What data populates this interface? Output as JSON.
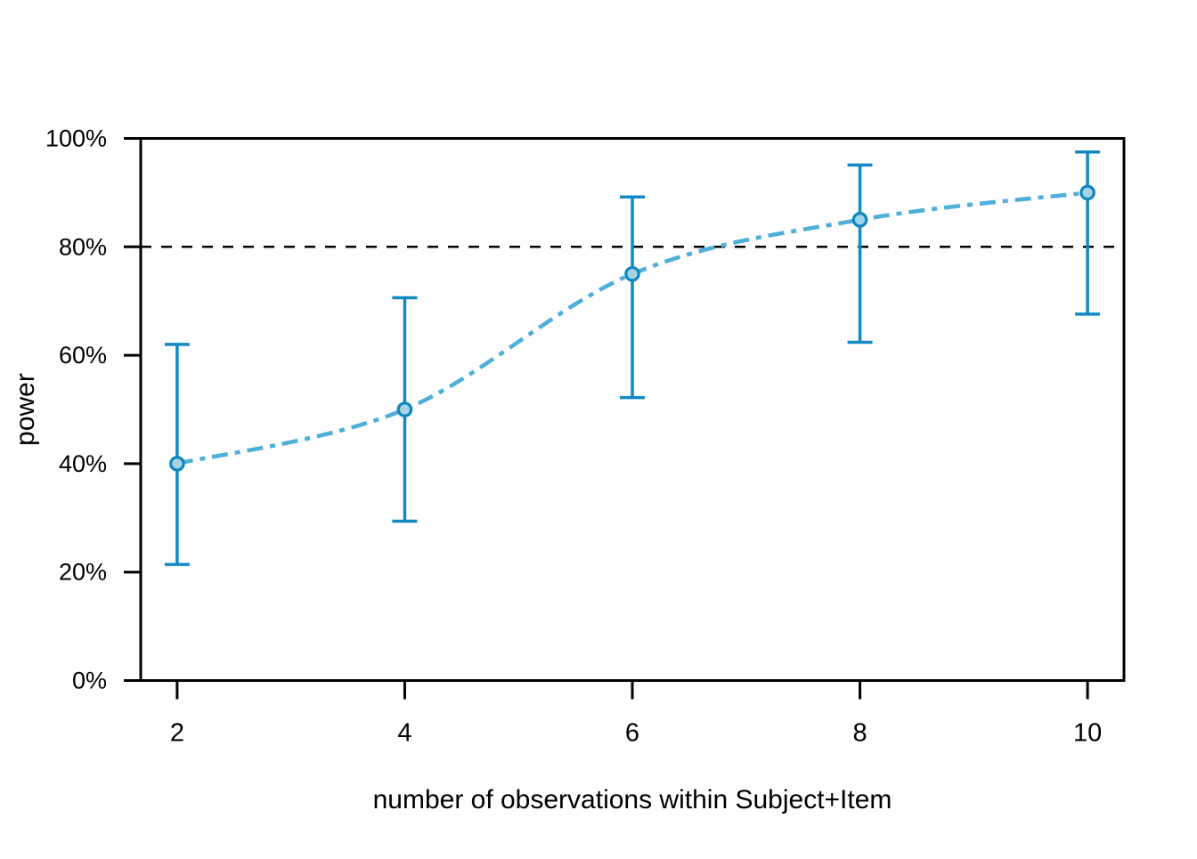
{
  "chart_data": {
    "type": "line",
    "title": "",
    "xlabel": "number of observations within Subject+Item",
    "ylabel": "power",
    "x": [
      2,
      4,
      6,
      8,
      10
    ],
    "series": [
      {
        "name": "power",
        "values": [
          40,
          50,
          75,
          85,
          90
        ],
        "ci_lower": [
          21.4,
          29.4,
          52.2,
          62.4,
          67.6
        ],
        "ci_upper": [
          62.0,
          70.6,
          89.2,
          95.1,
          97.5
        ]
      }
    ],
    "threshold_line": {
      "value": 80,
      "style": "dashed",
      "color": "#000000"
    },
    "x_tick_values": [
      2,
      4,
      6,
      8,
      10
    ],
    "x_tick_labels": [
      "2",
      "4",
      "6",
      "8",
      "10"
    ],
    "y_tick_values": [
      0,
      20,
      40,
      60,
      80,
      100
    ],
    "y_tick_labels": [
      "0%",
      "20%",
      "40%",
      "60%",
      "80%",
      "100%"
    ],
    "xlim": [
      1.68,
      10.32
    ],
    "ylim": [
      0,
      100
    ],
    "grid": false,
    "legend": "none",
    "frame": "box",
    "colors": {
      "curve": "#4FAFD9",
      "error_bar": "#1289C2",
      "marker_fill": "#A6D2E6",
      "marker_stroke": "#0E86BE",
      "threshold": "#000000",
      "axis": "#000000",
      "background": "#FFFFFF"
    }
  }
}
